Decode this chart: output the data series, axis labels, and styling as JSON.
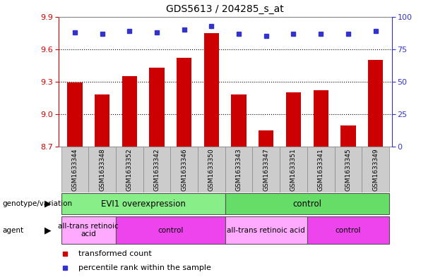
{
  "title": "GDS5613 / 204285_s_at",
  "samples": [
    "GSM1633344",
    "GSM1633348",
    "GSM1633352",
    "GSM1633342",
    "GSM1633346",
    "GSM1633350",
    "GSM1633343",
    "GSM1633347",
    "GSM1633351",
    "GSM1633341",
    "GSM1633345",
    "GSM1633349"
  ],
  "bar_values": [
    9.29,
    9.18,
    9.35,
    9.43,
    9.52,
    9.75,
    9.18,
    8.85,
    9.2,
    9.22,
    8.9,
    9.5
  ],
  "dot_values": [
    88,
    87,
    89,
    88,
    90,
    93,
    87,
    85,
    87,
    87,
    87,
    89
  ],
  "ylim_left": [
    8.7,
    9.9
  ],
  "ylim_right": [
    0,
    100
  ],
  "yticks_left": [
    8.7,
    9.0,
    9.3,
    9.6,
    9.9
  ],
  "yticks_right": [
    0,
    25,
    50,
    75,
    100
  ],
  "bar_color": "#cc0000",
  "dot_color": "#3333cc",
  "grid_color": "#000000",
  "genotype_groups": [
    {
      "label": "EVI1 overexpression",
      "start": 0,
      "end": 6,
      "color": "#88ee88"
    },
    {
      "label": "control",
      "start": 6,
      "end": 12,
      "color": "#66dd66"
    }
  ],
  "agent_groups": [
    {
      "label": "all-trans retinoic\nacid",
      "start": 0,
      "end": 2,
      "color": "#ffaaff"
    },
    {
      "label": "control",
      "start": 2,
      "end": 6,
      "color": "#ee44ee"
    },
    {
      "label": "all-trans retinoic acid",
      "start": 6,
      "end": 9,
      "color": "#ffaaff"
    },
    {
      "label": "control",
      "start": 9,
      "end": 12,
      "color": "#ee44ee"
    }
  ],
  "legend_items": [
    {
      "color": "#cc0000",
      "label": "transformed count"
    },
    {
      "color": "#3333cc",
      "label": "percentile rank within the sample"
    }
  ],
  "title_fontsize": 10,
  "tick_fontsize": 8,
  "label_fontsize": 8,
  "sample_bg": "#cccccc",
  "chart_border_color": "#888888"
}
